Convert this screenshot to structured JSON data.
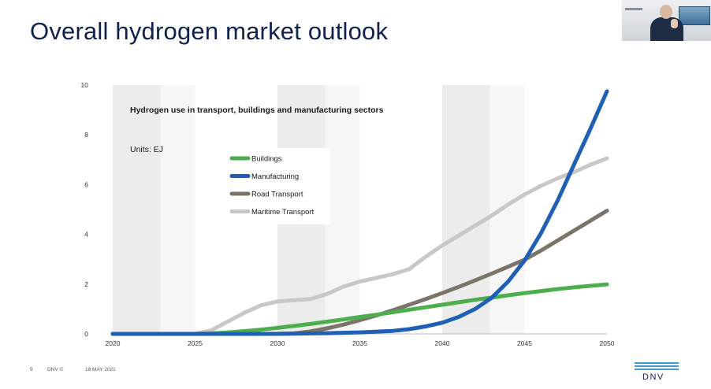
{
  "slide": {
    "title": "Overall hydrogen market outlook",
    "footer": {
      "page_number": "9",
      "brand": "DNV ©",
      "date": "18 MAY 2021"
    },
    "logo_text": "DNV"
  },
  "chart_data": {
    "type": "line",
    "title": "Hydrogen use in transport, buildings and manufacturing sectors",
    "units_label": "Units: EJ",
    "x_ticks": [
      "2020",
      "2025",
      "2030",
      "2035",
      "2040",
      "2045",
      "2050"
    ],
    "y_ticks": [
      "0",
      "2",
      "4",
      "6",
      "8",
      "10"
    ],
    "xlim": [
      2020,
      2050
    ],
    "ylim": [
      0,
      10
    ],
    "grid": "alternating vertical bands every 5 years",
    "legend_position": "upper-left inside plot",
    "series": [
      {
        "name": "Buildings",
        "color": "#4cae4c",
        "x": [
          2020,
          2025,
          2026,
          2027,
          2028,
          2029,
          2030,
          2031,
          2032,
          2033,
          2034,
          2035,
          2036,
          2037,
          2038,
          2039,
          2040,
          2041,
          2042,
          2043,
          2044,
          2045,
          2046,
          2047,
          2048,
          2049,
          2050
        ],
        "y": [
          0,
          0,
          0.02,
          0.06,
          0.11,
          0.17,
          0.24,
          0.32,
          0.4,
          0.49,
          0.58,
          0.68,
          0.77,
          0.87,
          0.97,
          1.07,
          1.17,
          1.27,
          1.37,
          1.46,
          1.55,
          1.64,
          1.72,
          1.8,
          1.87,
          1.93,
          1.99
        ]
      },
      {
        "name": "Manufacturing",
        "color": "#1f5fb4",
        "x": [
          2020,
          2029,
          2031,
          2033,
          2035,
          2037,
          2038,
          2039,
          2040,
          2041,
          2042,
          2043,
          2044,
          2045,
          2046,
          2047,
          2048,
          2049,
          2050
        ],
        "y": [
          0,
          0,
          0.01,
          0.03,
          0.06,
          0.12,
          0.19,
          0.3,
          0.45,
          0.68,
          1.0,
          1.45,
          2.1,
          2.95,
          4.05,
          5.35,
          6.8,
          8.25,
          9.75
        ]
      },
      {
        "name": "Road Transport",
        "color": "#7c7468",
        "x": [
          2020,
          2029,
          2030,
          2031,
          2032,
          2033,
          2034,
          2035,
          2036,
          2037,
          2038,
          2039,
          2040,
          2041,
          2042,
          2043,
          2044,
          2045,
          2046,
          2047,
          2048,
          2049,
          2050
        ],
        "y": [
          0,
          0,
          0,
          0.02,
          0.1,
          0.22,
          0.37,
          0.55,
          0.74,
          0.95,
          1.17,
          1.4,
          1.64,
          1.89,
          2.15,
          2.42,
          2.7,
          2.98,
          3.35,
          3.75,
          4.15,
          4.55,
          4.95
        ]
      },
      {
        "name": "Maritime Transport",
        "color": "#c9c7c7",
        "x": [
          2020,
          2025,
          2026,
          2027,
          2028,
          2029,
          2030,
          2031,
          2032,
          2033,
          2034,
          2035,
          2036,
          2037,
          2038,
          2039,
          2040,
          2041,
          2042,
          2043,
          2044,
          2045,
          2046,
          2047,
          2048,
          2049,
          2050
        ],
        "y": [
          0,
          0,
          0.15,
          0.5,
          0.85,
          1.15,
          1.3,
          1.35,
          1.4,
          1.6,
          1.9,
          2.1,
          2.25,
          2.4,
          2.6,
          3.1,
          3.55,
          3.95,
          4.35,
          4.75,
          5.2,
          5.6,
          5.95,
          6.25,
          6.5,
          6.8,
          7.05
        ]
      }
    ]
  }
}
